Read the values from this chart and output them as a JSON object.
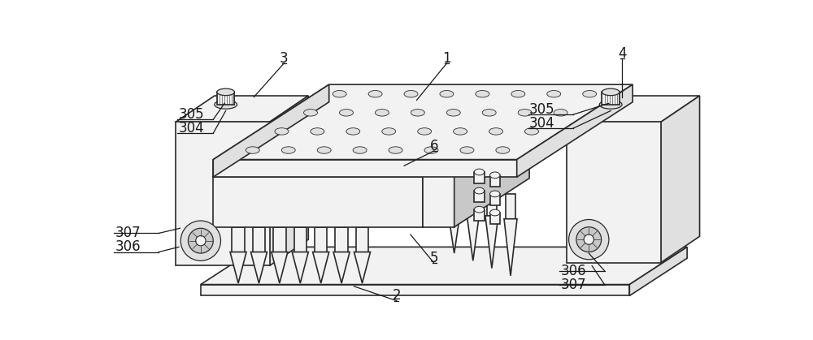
{
  "bg_color": "#ffffff",
  "line_color": "#2a2a2a",
  "fill_light": "#f2f2f2",
  "fill_mid": "#e0e0e0",
  "fill_dark": "#c8c8c8",
  "fill_darker": "#b8b8b8"
}
